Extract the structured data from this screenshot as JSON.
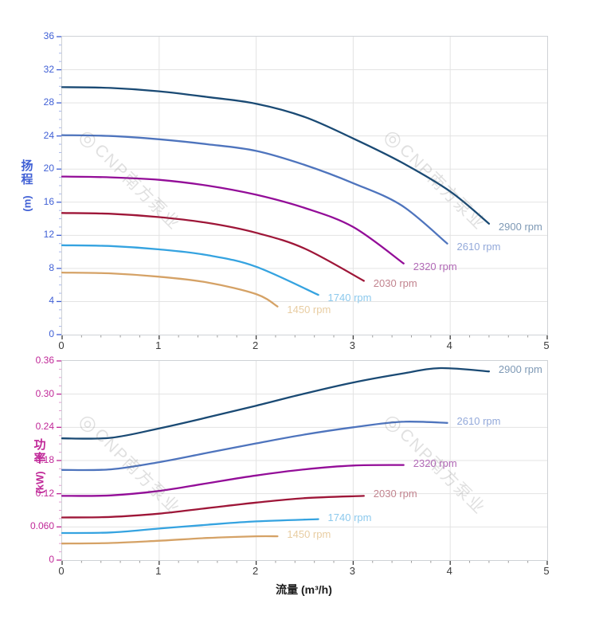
{
  "watermark": {
    "logo_glyph": "◎",
    "text": "CNP南方泵业"
  },
  "chart_data": [
    {
      "type": "line",
      "title": "",
      "xlabel": "",
      "ylabel": "扬程 (m)",
      "ylabel_chars": [
        "扬",
        "程"
      ],
      "ylabel_unit": "(m)",
      "xlim": [
        0,
        5
      ],
      "ylim": [
        0,
        36
      ],
      "x_ticks": [
        0,
        1,
        2,
        3,
        4,
        5
      ],
      "x_tick_labels": [
        "0",
        "1",
        "2",
        "3",
        "4",
        "5"
      ],
      "x_minor_step": 0.2,
      "y_ticks": [
        0,
        4,
        8,
        12,
        16,
        20,
        24,
        28,
        32,
        36
      ],
      "y_tick_labels": [
        "0",
        "4",
        "8",
        "12",
        "16",
        "20",
        "24",
        "28",
        "32",
        "36"
      ],
      "y_minor_step": 1,
      "grid": true,
      "axis_color": "#3f5fd5",
      "legend_position": "curve-end-labels",
      "series": [
        {
          "name": "2900 rpm",
          "color": "#1a4a74",
          "label_color": "#7e99b5",
          "points": [
            [
              0,
              29.9
            ],
            [
              0.5,
              29.8
            ],
            [
              1,
              29.4
            ],
            [
              1.5,
              28.7
            ],
            [
              2,
              27.9
            ],
            [
              2.5,
              26.3
            ],
            [
              3,
              23.7
            ],
            [
              3.5,
              20.8
            ],
            [
              4,
              17.3
            ],
            [
              4.4,
              13.4
            ]
          ]
        },
        {
          "name": "2610 rpm",
          "color": "#4e74bd",
          "label_color": "#93a9da",
          "points": [
            [
              0,
              24.1
            ],
            [
              0.5,
              24.0
            ],
            [
              1,
              23.6
            ],
            [
              1.5,
              23.0
            ],
            [
              2,
              22.2
            ],
            [
              2.5,
              20.5
            ],
            [
              3,
              18.3
            ],
            [
              3.5,
              15.6
            ],
            [
              3.97,
              11.0
            ]
          ]
        },
        {
          "name": "2320 rpm",
          "color": "#930d98",
          "label_color": "#b169b6",
          "points": [
            [
              0,
              19.1
            ],
            [
              0.5,
              19.0
            ],
            [
              1,
              18.7
            ],
            [
              1.5,
              18.0
            ],
            [
              2,
              16.9
            ],
            [
              2.5,
              15.3
            ],
            [
              3,
              13.0
            ],
            [
              3.52,
              8.6
            ]
          ]
        },
        {
          "name": "2030 rpm",
          "color": "#9e1638",
          "label_color": "#c2848f",
          "points": [
            [
              0,
              14.7
            ],
            [
              0.5,
              14.6
            ],
            [
              1,
              14.2
            ],
            [
              1.5,
              13.5
            ],
            [
              2,
              12.3
            ],
            [
              2.5,
              10.4
            ],
            [
              3.11,
              6.5
            ]
          ]
        },
        {
          "name": "1740 rpm",
          "color": "#35a3e0",
          "label_color": "#8cc9ed",
          "points": [
            [
              0,
              10.8
            ],
            [
              0.5,
              10.7
            ],
            [
              1,
              10.3
            ],
            [
              1.5,
              9.6
            ],
            [
              2,
              8.2
            ],
            [
              2.64,
              4.8
            ]
          ]
        },
        {
          "name": "1450 rpm",
          "color": "#d5a266",
          "label_color": "#e8cda2",
          "points": [
            [
              0,
              7.5
            ],
            [
              0.5,
              7.4
            ],
            [
              1,
              7.0
            ],
            [
              1.5,
              6.3
            ],
            [
              2,
              4.9
            ],
            [
              2.22,
              3.4
            ]
          ]
        }
      ]
    },
    {
      "type": "line",
      "title": "",
      "xlabel": "流量 (m³/h)",
      "ylabel": "功率 (kW)",
      "ylabel_chars": [
        "功",
        "率"
      ],
      "ylabel_unit": "(kW)",
      "xlim": [
        0,
        5
      ],
      "ylim": [
        0,
        0.36
      ],
      "x_ticks": [
        0,
        1,
        2,
        3,
        4,
        5
      ],
      "x_tick_labels": [
        "0",
        "1",
        "2",
        "3",
        "4",
        "5"
      ],
      "x_minor_step": 0.2,
      "y_ticks": [
        0,
        0.06,
        0.12,
        0.18,
        0.24,
        0.3,
        0.36
      ],
      "y_tick_labels": [
        "0",
        "0.060",
        "0.12",
        "0.18",
        "0.24",
        "0.30",
        "0.36"
      ],
      "y_minor_step": 0.015,
      "grid": true,
      "axis_color": "#c02898",
      "legend_position": "curve-end-labels",
      "series": [
        {
          "name": "2900 rpm",
          "color": "#1a4a74",
          "label_color": "#7e99b5",
          "points": [
            [
              0,
              0.22
            ],
            [
              0.5,
              0.221
            ],
            [
              1,
              0.238
            ],
            [
              1.5,
              0.258
            ],
            [
              2,
              0.279
            ],
            [
              2.5,
              0.301
            ],
            [
              3,
              0.321
            ],
            [
              3.5,
              0.337
            ],
            [
              3.9,
              0.347
            ],
            [
              4.4,
              0.341
            ]
          ]
        },
        {
          "name": "2610 rpm",
          "color": "#4e74bd",
          "label_color": "#93a9da",
          "points": [
            [
              0,
              0.163
            ],
            [
              0.5,
              0.164
            ],
            [
              1,
              0.177
            ],
            [
              1.5,
              0.194
            ],
            [
              2,
              0.211
            ],
            [
              2.5,
              0.227
            ],
            [
              3,
              0.24
            ],
            [
              3.5,
              0.25
            ],
            [
              3.97,
              0.248
            ]
          ]
        },
        {
          "name": "2320 rpm",
          "color": "#930d98",
          "label_color": "#b169b6",
          "points": [
            [
              0,
              0.116
            ],
            [
              0.5,
              0.117
            ],
            [
              1,
              0.125
            ],
            [
              1.5,
              0.139
            ],
            [
              2,
              0.153
            ],
            [
              2.5,
              0.164
            ],
            [
              3,
              0.171
            ],
            [
              3.52,
              0.172
            ]
          ]
        },
        {
          "name": "2030 rpm",
          "color": "#9e1638",
          "label_color": "#c2848f",
          "points": [
            [
              0,
              0.077
            ],
            [
              0.5,
              0.078
            ],
            [
              1,
              0.084
            ],
            [
              1.5,
              0.094
            ],
            [
              2,
              0.104
            ],
            [
              2.5,
              0.112
            ],
            [
              3.11,
              0.116
            ]
          ]
        },
        {
          "name": "1740 rpm",
          "color": "#35a3e0",
          "label_color": "#8cc9ed",
          "points": [
            [
              0,
              0.049
            ],
            [
              0.5,
              0.05
            ],
            [
              1,
              0.057
            ],
            [
              1.5,
              0.064
            ],
            [
              2,
              0.07
            ],
            [
              2.64,
              0.074
            ]
          ]
        },
        {
          "name": "1450 rpm",
          "color": "#d5a266",
          "label_color": "#e8cda2",
          "points": [
            [
              0,
              0.03
            ],
            [
              0.5,
              0.031
            ],
            [
              1,
              0.035
            ],
            [
              1.5,
              0.04
            ],
            [
              2,
              0.043
            ],
            [
              2.22,
              0.043
            ]
          ]
        }
      ]
    }
  ]
}
